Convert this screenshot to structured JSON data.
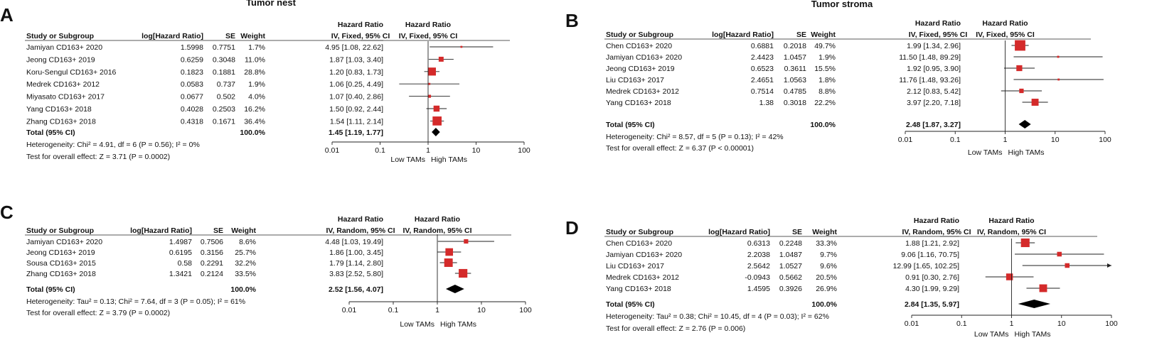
{
  "figure": {
    "colors": {
      "square": "#d42a2a",
      "line": "#222222",
      "diamond": "#000000",
      "axis": "#222222"
    },
    "labels": {
      "low": "Low TAMs",
      "high": "High TAMs"
    }
  },
  "chart_data": [
    {
      "type": "forest",
      "panel_label": "A",
      "title": "Tumor nest",
      "model": "IV, Fixed, 95% CI",
      "header": {
        "study": "Study or Subgroup",
        "loghr": "log[Hazard Ratio]",
        "se": "SE",
        "weight": "Weight",
        "hr": "Hazard Ratio"
      },
      "studies": [
        {
          "name": "Jamiyan CD163+ 2020",
          "loghr": "1.5998",
          "se": "0.7751",
          "weight": "1.7%",
          "ci": "4.95 [1.08, 22.62]",
          "hr": 4.95,
          "lo": 1.08,
          "hi": 22.62,
          "w": 1.7
        },
        {
          "name": "Jeong CD163+ 2019",
          "loghr": "0.6259",
          "se": "0.3048",
          "weight": "11.0%",
          "ci": "1.87 [1.03, 3.40]",
          "hr": 1.87,
          "lo": 1.03,
          "hi": 3.4,
          "w": 11.0
        },
        {
          "name": "Koru-Sengul CD163+ 2016",
          "loghr": "0.1823",
          "se": "0.1881",
          "weight": "28.8%",
          "ci": "1.20 [0.83, 1.73]",
          "hr": 1.2,
          "lo": 0.83,
          "hi": 1.73,
          "w": 28.8
        },
        {
          "name": "Medrek CD163+ 2012",
          "loghr": "0.0583",
          "se": "0.737",
          "weight": "1.9%",
          "ci": "1.06 [0.25, 4.49]",
          "hr": 1.06,
          "lo": 0.25,
          "hi": 4.49,
          "w": 1.9
        },
        {
          "name": "Miyasato CD163+ 2017",
          "loghr": "0.0677",
          "se": "0.502",
          "weight": "4.0%",
          "ci": "1.07 [0.40, 2.86]",
          "hr": 1.07,
          "lo": 0.4,
          "hi": 2.86,
          "w": 4.0
        },
        {
          "name": "Yang CD163+ 2018",
          "loghr": "0.4028",
          "se": "0.2503",
          "weight": "16.2%",
          "ci": "1.50 [0.92, 2.44]",
          "hr": 1.5,
          "lo": 0.92,
          "hi": 2.44,
          "w": 16.2
        },
        {
          "name": "Zhang CD163+ 2018",
          "loghr": "0.4318",
          "se": "0.1671",
          "weight": "36.4%",
          "ci": "1.54 [1.11, 2.14]",
          "hr": 1.54,
          "lo": 1.11,
          "hi": 2.14,
          "w": 36.4
        }
      ],
      "total": {
        "label": "Total (95% CI)",
        "weight": "100.0%",
        "ci": "1.45 [1.19, 1.77]",
        "hr": 1.45,
        "lo": 1.19,
        "hi": 1.77
      },
      "heterogeneity": "Heterogeneity: Chi² = 4.91, df = 6 (P = 0.56); I² = 0%",
      "overall": "Test for overall effect: Z = 3.71 (P = 0.0002)",
      "axis": {
        "ticks": [
          0.01,
          0.1,
          1,
          10,
          100
        ],
        "tick_labels": [
          "0.01",
          "0.1",
          "1",
          "10",
          "100"
        ]
      }
    },
    {
      "type": "forest",
      "panel_label": "B",
      "title": "Tumor stroma",
      "model": "IV, Fixed, 95% CI",
      "header": {
        "study": "Study or Subgroup",
        "loghr": "log[Hazard Ratio]",
        "se": "SE",
        "weight": "Weight",
        "hr": "Hazard Ratio"
      },
      "studies": [
        {
          "name": "Chen CD163+ 2020",
          "loghr": "0.6881",
          "se": "0.2018",
          "weight": "49.7%",
          "ci": "1.99 [1.34, 2.96]",
          "hr": 1.99,
          "lo": 1.34,
          "hi": 2.96,
          "w": 49.7
        },
        {
          "name": "Jamiyan CD163+ 2020",
          "loghr": "2.4423",
          "se": "1.0457",
          "weight": "1.9%",
          "ci": "11.50 [1.48, 89.29]",
          "hr": 11.5,
          "lo": 1.48,
          "hi": 89.29,
          "w": 1.9
        },
        {
          "name": "Jeong CD163+ 2019",
          "loghr": "0.6523",
          "se": "0.3611",
          "weight": "15.5%",
          "ci": "1.92 [0.95, 3.90]",
          "hr": 1.92,
          "lo": 0.95,
          "hi": 3.9,
          "w": 15.5
        },
        {
          "name": "Liu CD163+ 2017",
          "loghr": "2.4651",
          "se": "1.0563",
          "weight": "1.8%",
          "ci": "11.76 [1.48, 93.26]",
          "hr": 11.76,
          "lo": 1.48,
          "hi": 93.26,
          "w": 1.8
        },
        {
          "name": "Medrek CD163+ 2012",
          "loghr": "0.7514",
          "se": "0.4785",
          "weight": "8.8%",
          "ci": "2.12 [0.83, 5.42]",
          "hr": 2.12,
          "lo": 0.83,
          "hi": 5.42,
          "w": 8.8
        },
        {
          "name": "Yang CD163+ 2018",
          "loghr": "1.38",
          "se": "0.3018",
          "weight": "22.2%",
          "ci": "3.97 [2.20, 7.18]",
          "hr": 3.97,
          "lo": 2.2,
          "hi": 7.18,
          "w": 22.2
        }
      ],
      "total": {
        "label": "Total (95% CI)",
        "weight": "100.0%",
        "ci": "2.48 [1.87, 3.27]",
        "hr": 2.48,
        "lo": 1.87,
        "hi": 3.27
      },
      "heterogeneity": "Heterogeneity: Chi² = 8.57, df = 5 (P = 0.13); I² = 42%",
      "overall": "Test for overall effect: Z = 6.37 (P < 0.00001)",
      "axis": {
        "ticks": [
          0.01,
          0.1,
          1,
          10,
          100
        ],
        "tick_labels": [
          "0.01",
          "0.1",
          "1",
          "10",
          "100"
        ]
      }
    },
    {
      "type": "forest",
      "panel_label": "C",
      "title": "",
      "model": "IV, Random, 95% CI",
      "header": {
        "study": "Study or Subgroup",
        "loghr": "log[Hazard Ratio]",
        "se": "SE",
        "weight": "Weight",
        "hr": "Hazard Ratio"
      },
      "studies": [
        {
          "name": "Jamiyan CD163+ 2020",
          "loghr": "1.4987",
          "se": "0.7506",
          "weight": "8.6%",
          "ci": "4.48 [1.03, 19.49]",
          "hr": 4.48,
          "lo": 1.03,
          "hi": 19.49,
          "w": 8.6
        },
        {
          "name": "Jeong CD163+ 2019",
          "loghr": "0.6195",
          "se": "0.3156",
          "weight": "25.7%",
          "ci": "1.86 [1.00, 3.45]",
          "hr": 1.86,
          "lo": 1.0,
          "hi": 3.45,
          "w": 25.7
        },
        {
          "name": "Sousa CD163+ 2015",
          "loghr": "0.58",
          "se": "0.2291",
          "weight": "32.2%",
          "ci": "1.79 [1.14, 2.80]",
          "hr": 1.79,
          "lo": 1.14,
          "hi": 2.8,
          "w": 32.2
        },
        {
          "name": "Zhang CD163+ 2018",
          "loghr": "1.3421",
          "se": "0.2124",
          "weight": "33.5%",
          "ci": "3.83 [2.52, 5.80]",
          "hr": 3.83,
          "lo": 2.52,
          "hi": 5.8,
          "w": 33.5
        }
      ],
      "total": {
        "label": "Total (95% CI)",
        "weight": "100.0%",
        "ci": "2.52 [1.56, 4.07]",
        "hr": 2.52,
        "lo": 1.56,
        "hi": 4.07
      },
      "heterogeneity": "Heterogeneity: Tau² = 0.13; Chi² = 7.64, df = 3 (P = 0.05); I² = 61%",
      "overall": "Test for overall effect: Z = 3.79 (P = 0.0002)",
      "axis": {
        "ticks": [
          0.01,
          0.1,
          1,
          10,
          100
        ],
        "tick_labels": [
          "0.01",
          "0.1",
          "1",
          "10",
          "100"
        ]
      }
    },
    {
      "type": "forest",
      "panel_label": "D",
      "title": "",
      "model": "IV, Random, 95% CI",
      "header": {
        "study": "Study or Subgroup",
        "loghr": "log[Hazard Ratio]",
        "se": "SE",
        "weight": "Weight",
        "hr": "Hazard Ratio"
      },
      "studies": [
        {
          "name": "Chen CD163+ 2020",
          "loghr": "0.6313",
          "se": "0.2248",
          "weight": "33.3%",
          "ci": "1.88 [1.21, 2.92]",
          "hr": 1.88,
          "lo": 1.21,
          "hi": 2.92,
          "w": 33.3
        },
        {
          "name": "Jamiyan CD163+ 2020",
          "loghr": "2.2038",
          "se": "1.0487",
          "weight": "9.7%",
          "ci": "9.06 [1.16, 70.75]",
          "hr": 9.06,
          "lo": 1.16,
          "hi": 70.75,
          "w": 9.7
        },
        {
          "name": "Liu CD163+ 2017",
          "loghr": "2.5642",
          "se": "1.0527",
          "weight": "9.6%",
          "ci": "12.99 [1.65, 102.25]",
          "hr": 12.99,
          "lo": 1.65,
          "hi": 102.25,
          "w": 9.6
        },
        {
          "name": "Medrek CD163+ 2012",
          "loghr": "-0.0943",
          "se": "0.5662",
          "weight": "20.5%",
          "ci": "0.91 [0.30, 2.76]",
          "hr": 0.91,
          "lo": 0.3,
          "hi": 2.76,
          "w": 20.5
        },
        {
          "name": "Yang CD163+ 2018",
          "loghr": "1.4595",
          "se": "0.3926",
          "weight": "26.9%",
          "ci": "4.30 [1.99, 9.29]",
          "hr": 4.3,
          "lo": 1.99,
          "hi": 9.29,
          "w": 26.9
        }
      ],
      "total": {
        "label": "Total (95% CI)",
        "weight": "100.0%",
        "ci": "2.84 [1.35, 5.97]",
        "hr": 2.84,
        "lo": 1.35,
        "hi": 5.97
      },
      "heterogeneity": "Heterogeneity: Tau² = 0.38; Chi² = 10.45, df = 4 (P = 0.03); I² = 62%",
      "overall": "Test for overall effect: Z = 2.76 (P = 0.006)",
      "axis": {
        "ticks": [
          0.01,
          0.1,
          1,
          10,
          100
        ],
        "tick_labels": [
          "0.01",
          "0.1",
          "1",
          "10",
          "100"
        ]
      }
    }
  ]
}
